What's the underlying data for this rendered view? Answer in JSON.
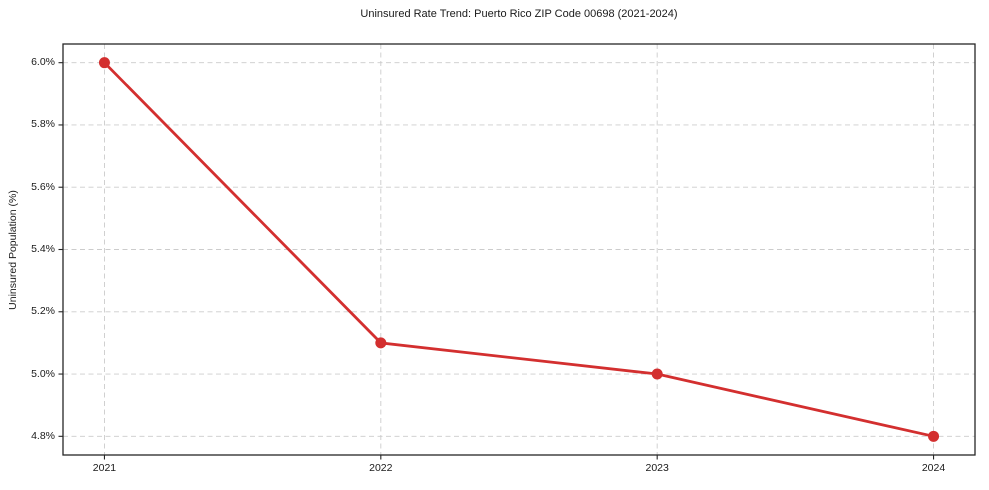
{
  "chart_data": {
    "type": "line",
    "title": "Uninsured Rate Trend: Puerto Rico ZIP Code 00698 (2021-2024)",
    "xlabel": "",
    "ylabel": "Uninsured Population (%)",
    "x": [
      2021,
      2022,
      2023,
      2024
    ],
    "xtick_labels": [
      "2021",
      "2022",
      "2023",
      "2024"
    ],
    "values": [
      6.0,
      5.1,
      5.0,
      4.8
    ],
    "yticks": [
      4.8,
      5.0,
      5.2,
      5.4,
      5.6,
      5.8,
      6.0
    ],
    "ytick_labels": [
      "4.8%",
      "5.0%",
      "5.2%",
      "5.4%",
      "5.6%",
      "5.8%",
      "6.0%"
    ],
    "xlim": [
      2020.85,
      2024.15
    ],
    "ylim": [
      4.74,
      6.06
    ],
    "grid": true,
    "legend": "none",
    "line_color": "#d32f2f",
    "marker_color": "#d32f2f",
    "grid_color": "#cccccc",
    "spine_color": "#262626",
    "text_color": "#1a1a1a"
  }
}
